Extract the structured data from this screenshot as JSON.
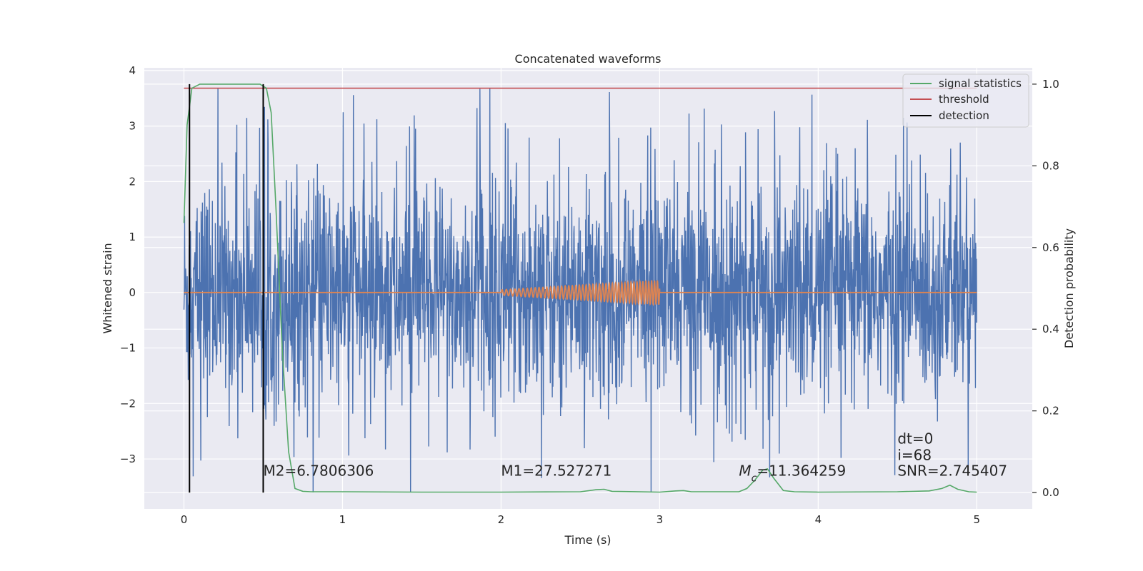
{
  "chart_data": {
    "type": "line",
    "title": "Concatenated waveforms",
    "xlabel": "Time (s)",
    "ylabel": "Whitened strain",
    "y2label": "Detection probability",
    "xlim": [
      -0.25,
      5.35
    ],
    "ylim": [
      -3.9,
      4.05
    ],
    "y2lim": [
      -0.04,
      1.04
    ],
    "x_ticks": [
      0,
      1,
      2,
      3,
      4,
      5
    ],
    "y_ticks": [
      4,
      3,
      2,
      1,
      0,
      -1,
      -2,
      -3
    ],
    "y_tick_labels": [
      "4",
      "3",
      "2",
      "1",
      "0",
      "−1",
      "−2",
      "−3"
    ],
    "y2_ticks": [
      1.0,
      0.8,
      0.6,
      0.4,
      0.2,
      0.0
    ],
    "y2_tick_labels": [
      "1.0",
      "0.8",
      "0.6",
      "0.4",
      "0.2",
      "0.0"
    ],
    "grid": true,
    "legend_position": "top-right",
    "series": [
      {
        "name": "",
        "axis": "left",
        "kind": "noise",
        "color": "#4c72b0",
        "x_range": [
          0,
          5
        ],
        "envelope_typical": 1.6,
        "peak_max": 3.7,
        "peak_min": -3.6
      },
      {
        "name": "",
        "axis": "left",
        "kind": "chirp",
        "color": "#dd8452",
        "x_range": [
          0,
          5
        ],
        "chirp_start": 2.0,
        "chirp_end": 3.0,
        "amplitude_start": 0.05,
        "amplitude_end": 0.22
      },
      {
        "name": "signal statistics",
        "axis": "right",
        "color": "#55a868",
        "x": [
          0,
          0.02,
          0.05,
          0.1,
          0.2,
          0.3,
          0.4,
          0.48,
          0.52,
          0.55,
          0.58,
          0.62,
          0.66,
          0.7,
          0.75,
          0.8,
          1.0,
          1.5,
          2.0,
          2.5,
          2.6,
          2.65,
          2.7,
          3.0,
          3.1,
          3.15,
          3.2,
          3.5,
          3.55,
          3.6,
          3.65,
          3.68,
          3.72,
          3.78,
          3.85,
          4.0,
          4.5,
          4.7,
          4.78,
          4.83,
          4.88,
          4.95,
          5.0
        ],
        "y": [
          0.66,
          0.9,
          0.99,
          1.0,
          1.0,
          1.0,
          1.0,
          1.0,
          0.99,
          0.93,
          0.7,
          0.35,
          0.1,
          0.01,
          0.003,
          0.002,
          0.002,
          0.001,
          0.001,
          0.002,
          0.007,
          0.008,
          0.003,
          0.001,
          0.004,
          0.005,
          0.002,
          0.002,
          0.01,
          0.03,
          0.055,
          0.058,
          0.035,
          0.005,
          0.002,
          0.001,
          0.002,
          0.004,
          0.01,
          0.018,
          0.008,
          0.002,
          0.001
        ]
      },
      {
        "name": "threshold",
        "axis": "right",
        "color": "#c44e52",
        "x": [
          0,
          5
        ],
        "y": [
          0.99,
          0.99
        ]
      }
    ],
    "detections": {
      "name": "detection",
      "color": "#000000",
      "x": [
        0.035,
        0.5
      ],
      "y_range": [
        0.0,
        1.0
      ]
    },
    "annotations": [
      {
        "name": "m2",
        "segments": [
          {
            "text": "M2=6.7806306"
          }
        ],
        "x": 0.5,
        "y": -3.3
      },
      {
        "name": "m1",
        "segments": [
          {
            "text": "M1=27.527271"
          }
        ],
        "x": 2.0,
        "y": -3.3
      },
      {
        "name": "mc",
        "segments": [
          {
            "text": "M",
            "italic": true
          },
          {
            "text": "c",
            "italic": true,
            "sub": true
          },
          {
            "text": "=11.364259"
          }
        ],
        "x": 3.5,
        "y": -3.3
      },
      {
        "name": "dt",
        "segments": [
          {
            "text": "dt=0"
          }
        ],
        "x": 4.5,
        "y": -2.72
      },
      {
        "name": "i",
        "segments": [
          {
            "text": "i=68"
          }
        ],
        "x": 4.5,
        "y": -3.02
      },
      {
        "name": "snr",
        "segments": [
          {
            "text": "SNR=2.745407"
          }
        ],
        "x": 4.5,
        "y": -3.3
      }
    ]
  },
  "colors": {
    "plot_background": "#eaeaf2",
    "grid": "#ffffff",
    "text": "#262626"
  }
}
